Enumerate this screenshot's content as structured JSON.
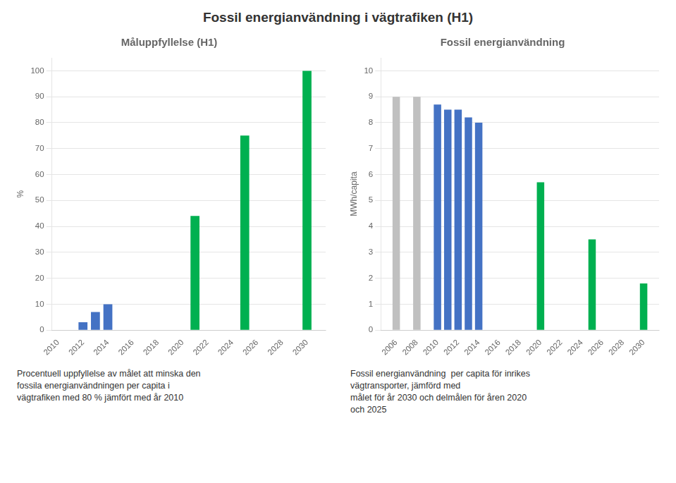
{
  "title": "Fossil energianvändning i vägtrafiken (H1)",
  "chart_data": [
    {
      "type": "bar",
      "title": "Måluppfyllelse (H1)",
      "ylabel": "%",
      "annotation": "Procentuell uppfyllelse av målet att minska den\nfossila energianvändningen per capita i\nvägtrafiken med 80 % jämfört med år 2010",
      "x": [
        2012,
        2013,
        2014,
        2021,
        2025,
        2030
      ],
      "values": [
        3,
        7,
        10,
        44,
        75,
        100
      ],
      "colors": [
        "#4472C4",
        "#4472C4",
        "#4472C4",
        "#00B050",
        "#00B050",
        "#00B050"
      ],
      "xlim": [
        2009.5,
        2031.5
      ],
      "xticks": [
        2010,
        2012,
        2014,
        2016,
        2018,
        2020,
        2022,
        2024,
        2026,
        2028,
        2030
      ],
      "ylim": [
        0,
        105
      ],
      "yticks": [
        0,
        10,
        20,
        30,
        40,
        50,
        60,
        70,
        80,
        90,
        100
      ],
      "grid": true
    },
    {
      "type": "bar",
      "title": "Fossil energianvändning",
      "ylabel": "MWh/capita",
      "annotation": "Fossil energianvändning  per capita för inrikes\nvägtransporter, jämförd med\nmålet för år 2030 och delmålen för åren 2020\noch 2025",
      "x": [
        2006,
        2008,
        2010,
        2011,
        2012,
        2013,
        2014,
        2020,
        2025,
        2030
      ],
      "values": [
        9.0,
        9.0,
        8.7,
        8.5,
        8.5,
        8.2,
        8.0,
        5.7,
        3.5,
        1.8
      ],
      "colors": [
        "#C0C0C0",
        "#C0C0C0",
        "#4472C4",
        "#4472C4",
        "#4472C4",
        "#4472C4",
        "#4472C4",
        "#00B050",
        "#00B050",
        "#00B050"
      ],
      "xlim": [
        2004.5,
        2031.5
      ],
      "xticks": [
        2006,
        2008,
        2010,
        2012,
        2014,
        2016,
        2018,
        2020,
        2022,
        2024,
        2026,
        2028,
        2030
      ],
      "ylim": [
        0,
        10.5
      ],
      "yticks": [
        0,
        1,
        2,
        3,
        4,
        5,
        6,
        7,
        8,
        9,
        10
      ],
      "grid": true
    }
  ]
}
